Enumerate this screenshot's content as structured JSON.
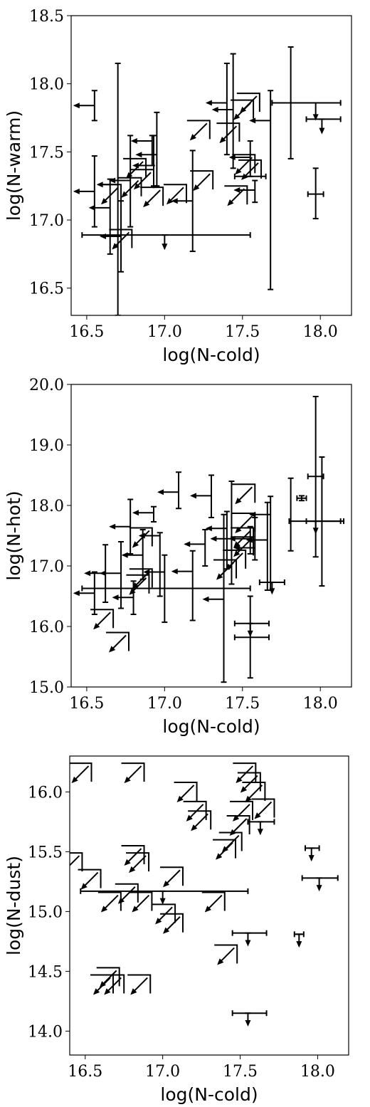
{
  "chart_data": [
    {
      "type": "scatter",
      "xlabel": "log(N-cold)",
      "ylabel": "log(N-warm)",
      "xlim": [
        16.4,
        18.2
      ],
      "ylim": [
        16.3,
        18.5
      ],
      "xticks": [
        "16.5",
        "17.0",
        "17.5",
        "18.0"
      ],
      "yticks": [
        "16.5",
        "17.0",
        "17.5",
        "18.0",
        "18.5"
      ],
      "grid": false,
      "legend": "none",
      "color": "#000000",
      "measurements": [
        {
          "x": 16.55,
          "y": 17.84,
          "yerr": [
            17.73,
            17.95
          ],
          "xlim": "upper"
        },
        {
          "x": 16.55,
          "y": 17.21,
          "yerr": [
            16.95,
            17.47
          ],
          "xlim": "upper"
        },
        {
          "x": 16.65,
          "y": 17.09,
          "yerr": [
            16.75,
            17.3
          ],
          "xlim": "upper"
        },
        {
          "x": 16.7,
          "y": 17.26,
          "yerr": [
            16.3,
            18.15
          ],
          "xlim": "upper"
        },
        {
          "x": 16.72,
          "y": 16.88,
          "yerr": [
            16.62,
            17.14
          ],
          "xlim": "upper"
        },
        {
          "x": 16.78,
          "y": 17.29,
          "yerr": [
            16.95,
            17.62
          ],
          "xlim": "upper"
        },
        {
          "x": 16.92,
          "y": 17.58,
          "yerr": [
            17.4,
            17.62
          ],
          "xlim": "upper"
        },
        {
          "x": 16.95,
          "y": 17.48,
          "yerr": [
            17.25,
            17.79
          ],
          "xlim": "upper"
        },
        {
          "x": 16.93,
          "y": 17.4,
          "yerr": [
            17.25,
            17.62
          ],
          "xlim": "upper"
        },
        {
          "x": 17.18,
          "y": 17.14,
          "yerr": [
            16.77,
            17.51
          ],
          "xlim": "upper"
        },
        {
          "x": 17.4,
          "y": 17.86,
          "yerr": [
            17.48,
            18.15
          ],
          "xlim": "upper"
        },
        {
          "x": 17.44,
          "y": 17.81,
          "yerr": [
            17.38,
            18.22
          ],
          "xlim": "upper"
        },
        {
          "x": 17.55,
          "y": 17.46,
          "yerr": [
            17.32,
            17.58
          ],
          "xlim": "upper"
        },
        {
          "x": 17.58,
          "y": 17.22,
          "yerr": [
            17.13,
            17.29
          ],
          "xlim": "upper"
        },
        {
          "x": 17.68,
          "y": 17.73,
          "yerr": [
            16.49,
            17.95
          ],
          "xlim": "upper"
        },
        {
          "x": 17.81,
          "y": 17.86,
          "yerr": [
            17.45,
            18.27
          ],
          "xlim": "none"
        },
        {
          "x": 17.97,
          "y": 17.19,
          "yerr": [
            17.01,
            17.38
          ],
          "xerr": [
            17.92,
            18.02
          ],
          "xlim": "none"
        },
        {
          "x": 17.97,
          "y": 17.86,
          "yerr": [
            17.74,
            17.86
          ],
          "xerr": [
            17.69,
            18.13
          ],
          "ylim": "upper"
        },
        {
          "x": 18.01,
          "y": 17.74,
          "yerr": [
            17.64,
            17.74
          ],
          "xerr": [
            17.91,
            18.13
          ],
          "ylim": "upper"
        },
        {
          "x": 17.0,
          "y": 16.89,
          "yerr": [
            16.79,
            16.89
          ],
          "xerr": [
            16.47,
            17.55
          ],
          "ylim": "upper"
        },
        {
          "x": 17.55,
          "y": 17.32,
          "xerr": [
            17.45,
            17.65
          ]
        }
      ],
      "limits": [
        {
          "x": 16.79,
          "y": 16.93
        },
        {
          "x": 16.72,
          "y": 17.26
        },
        {
          "x": 16.85,
          "y": 17.31
        },
        {
          "x": 16.88,
          "y": 17.45
        },
        {
          "x": 16.93,
          "y": 17.37
        },
        {
          "x": 16.99,
          "y": 17.24
        },
        {
          "x": 17.14,
          "y": 17.26
        },
        {
          "x": 17.31,
          "y": 17.36
        },
        {
          "x": 17.29,
          "y": 17.73
        },
        {
          "x": 17.48,
          "y": 17.71
        },
        {
          "x": 17.57,
          "y": 17.88
        },
        {
          "x": 17.61,
          "y": 17.93
        },
        {
          "x": 17.58,
          "y": 17.48
        },
        {
          "x": 17.53,
          "y": 17.25
        },
        {
          "x": 17.62,
          "y": 17.44
        }
      ]
    },
    {
      "type": "scatter",
      "xlabel": "log(N-cold)",
      "ylabel": "log(N-hot)",
      "xlim": [
        16.4,
        18.2
      ],
      "ylim": [
        15.0,
        20.0
      ],
      "xticks": [
        "16.5",
        "17.0",
        "17.5",
        "18.0"
      ],
      "yticks": [
        "15.0",
        "16.0",
        "17.0",
        "18.0",
        "19.0",
        "20.0"
      ],
      "grid": false,
      "legend": "none",
      "color": "#000000",
      "measurements": [
        {
          "x": 16.55,
          "y": 16.55,
          "yerr": [
            16.2,
            16.9
          ],
          "xlim": "upper"
        },
        {
          "x": 16.62,
          "y": 16.88,
          "yerr": [
            16.4,
            17.35
          ],
          "xlim": "upper"
        },
        {
          "x": 16.72,
          "y": 16.88,
          "yerr": [
            16.3,
            17.4
          ],
          "xlim": "upper"
        },
        {
          "x": 16.78,
          "y": 17.65,
          "yerr": [
            17.2,
            18.1
          ],
          "xlim": "upper"
        },
        {
          "x": 16.8,
          "y": 16.48,
          "yerr": [
            16.2,
            16.75
          ],
          "xlim": "upper"
        },
        {
          "x": 16.86,
          "y": 17.18,
          "yerr": [
            16.78,
            17.6
          ],
          "xlim": "upper"
        },
        {
          "x": 16.93,
          "y": 17.88,
          "yerr": [
            17.73,
            17.98
          ],
          "xlim": "upper"
        },
        {
          "x": 16.97,
          "y": 17.5,
          "yerr": [
            16.5,
            17.55
          ],
          "xlim": "upper"
        },
        {
          "x": 17.0,
          "y": 16.9,
          "yerr": [
            16.07,
            17.18
          ],
          "xlim": "upper"
        },
        {
          "x": 17.09,
          "y": 18.22,
          "yerr": [
            17.95,
            18.55
          ],
          "xlim": "upper"
        },
        {
          "x": 17.18,
          "y": 16.91,
          "yerr": [
            16.1,
            17.25
          ],
          "xlim": "upper"
        },
        {
          "x": 17.3,
          "y": 18.16,
          "yerr": [
            17.8,
            18.5
          ],
          "xlim": "upper"
        },
        {
          "x": 17.26,
          "y": 17.36,
          "yerr": [
            17.0,
            17.6
          ],
          "xlim": "upper"
        },
        {
          "x": 17.4,
          "y": 17.62,
          "yerr": [
            16.95,
            17.9
          ],
          "xlim": "upper"
        },
        {
          "x": 17.38,
          "y": 16.45,
          "yerr": [
            15.08,
            17.85
          ],
          "xlim": "upper"
        },
        {
          "x": 17.43,
          "y": 17.45,
          "yerr": [
            16.7,
            18.4
          ],
          "xlim": "upper"
        },
        {
          "x": 17.55,
          "y": 17.45,
          "yerr": [
            17.2,
            17.65
          ],
          "xlim": "upper"
        },
        {
          "x": 17.58,
          "y": 17.3,
          "yerr": [
            17.1,
            17.8
          ],
          "xlim": "upper"
        },
        {
          "x": 17.66,
          "y": 17.43,
          "yerr": [
            16.6,
            18.05
          ],
          "xlim": "upper"
        },
        {
          "x": 17.68,
          "y": 17.85,
          "yerr": [
            16.6,
            18.15
          ],
          "xlim": "upper"
        },
        {
          "x": 17.81,
          "y": 17.86,
          "yerr": [
            17.25,
            18.45
          ],
          "xlim": "none"
        },
        {
          "x": 17.88,
          "y": 18.12,
          "yerr": [
            18.08,
            18.16
          ],
          "xerr": [
            17.85,
            17.91
          ],
          "xlim": "none"
        },
        {
          "x": 17.97,
          "y": 18.48,
          "yerr": [
            17.15,
            19.8
          ],
          "xerr": [
            17.92,
            18.02
          ],
          "xlim": "none"
        },
        {
          "x": 18.01,
          "y": 17.74,
          "yerr": [
            16.67,
            18.8
          ],
          "xerr": [
            17.91,
            18.13
          ],
          "xlim": "none"
        },
        {
          "x": 17.97,
          "y": 17.74,
          "yerr": [
            17.55,
            17.74
          ],
          "xerr": [
            17.8,
            18.15
          ],
          "ylim": "upper"
        },
        {
          "x": 17.55,
          "y": 16.05,
          "yerr": [
            15.85,
            16.5
          ],
          "xerr": [
            17.45,
            17.67
          ],
          "ylim": "upper"
        },
        {
          "x": 17.55,
          "y": 15.82,
          "yerr": [
            15.15,
            16.05
          ],
          "xerr": [
            17.45,
            17.67
          ],
          "xlim": "none"
        },
        {
          "x": 17.69,
          "y": 16.73,
          "yerr": [
            16.55,
            16.73
          ],
          "xerr": [
            17.61,
            17.77
          ],
          "ylim": "upper"
        },
        {
          "x": 17.0,
          "y": 16.63,
          "xerr": [
            16.47,
            17.55
          ]
        }
      ],
      "limits": [
        {
          "x": 16.67,
          "y": 16.28
        },
        {
          "x": 16.77,
          "y": 15.9
        },
        {
          "x": 16.92,
          "y": 16.95
        },
        {
          "x": 16.9,
          "y": 16.85
        },
        {
          "x": 16.92,
          "y": 17.63
        },
        {
          "x": 17.58,
          "y": 18.35
        },
        {
          "x": 17.58,
          "y": 17.87
        },
        {
          "x": 17.52,
          "y": 17.26
        },
        {
          "x": 17.57,
          "y": 17.48
        },
        {
          "x": 17.57,
          "y": 17.63
        },
        {
          "x": 17.46,
          "y": 17.1
        }
      ]
    },
    {
      "type": "scatter",
      "xlabel": "log(N-cold)",
      "ylabel": "log(N-dust)",
      "xlim": [
        16.4,
        18.2
      ],
      "ylim": [
        13.8,
        16.3
      ],
      "xticks": [
        "16.5",
        "17.0",
        "17.5",
        "18.0"
      ],
      "yticks": [
        "14.0",
        "14.5",
        "15.0",
        "15.5",
        "16.0"
      ],
      "grid": false,
      "legend": "none",
      "color": "#000000",
      "measurements": [
        {
          "x": 17.0,
          "y": 15.17,
          "xerr": [
            16.47,
            17.55
          ],
          "yerr": [
            15.07,
            15.17
          ],
          "ylim": "upper"
        },
        {
          "x": 17.55,
          "y": 14.82,
          "xerr": [
            17.45,
            17.67
          ],
          "yerr": [
            14.72,
            14.82
          ],
          "ylim": "upper"
        },
        {
          "x": 17.55,
          "y": 14.15,
          "xerr": [
            17.45,
            17.67
          ],
          "yerr": [
            14.05,
            14.15
          ],
          "ylim": "upper"
        },
        {
          "x": 17.63,
          "y": 15.75,
          "xerr": [
            17.55,
            17.72
          ],
          "yerr": [
            15.65,
            15.75
          ],
          "ylim": "upper"
        },
        {
          "x": 17.96,
          "y": 15.53,
          "xerr": [
            17.92,
            18.01
          ],
          "yerr": [
            15.43,
            15.53
          ],
          "ylim": "upper"
        },
        {
          "x": 18.01,
          "y": 15.28,
          "xerr": [
            17.9,
            18.13
          ],
          "yerr": [
            15.18,
            15.28
          ],
          "ylim": "upper"
        },
        {
          "x": 17.88,
          "y": 14.81,
          "xerr": [
            17.85,
            17.91
          ],
          "yerr": [
            14.71,
            14.81
          ],
          "ylim": "upper"
        }
      ],
      "limits": [
        {
          "x": 16.54,
          "y": 16.24
        },
        {
          "x": 16.88,
          "y": 16.24
        },
        {
          "x": 17.22,
          "y": 16.08
        },
        {
          "x": 17.28,
          "y": 15.92
        },
        {
          "x": 17.31,
          "y": 15.84
        },
        {
          "x": 17.6,
          "y": 16.24
        },
        {
          "x": 17.63,
          "y": 16.16
        },
        {
          "x": 17.66,
          "y": 16.08
        },
        {
          "x": 17.58,
          "y": 15.92
        },
        {
          "x": 17.56,
          "y": 15.8
        },
        {
          "x": 17.72,
          "y": 15.94
        },
        {
          "x": 17.51,
          "y": 15.66
        },
        {
          "x": 17.47,
          "y": 15.6
        },
        {
          "x": 16.48,
          "y": 15.49
        },
        {
          "x": 16.88,
          "y": 15.55
        },
        {
          "x": 16.91,
          "y": 15.49
        },
        {
          "x": 16.6,
          "y": 15.35
        },
        {
          "x": 17.13,
          "y": 15.37
        },
        {
          "x": 16.84,
          "y": 15.23
        },
        {
          "x": 16.73,
          "y": 15.16
        },
        {
          "x": 16.93,
          "y": 15.16
        },
        {
          "x": 17.4,
          "y": 15.16
        },
        {
          "x": 17.08,
          "y": 15.06
        },
        {
          "x": 17.13,
          "y": 14.98
        },
        {
          "x": 17.48,
          "y": 14.72
        },
        {
          "x": 16.68,
          "y": 14.47
        },
        {
          "x": 16.75,
          "y": 14.47
        },
        {
          "x": 16.92,
          "y": 14.47
        },
        {
          "x": 16.72,
          "y": 14.53
        }
      ]
    }
  ]
}
